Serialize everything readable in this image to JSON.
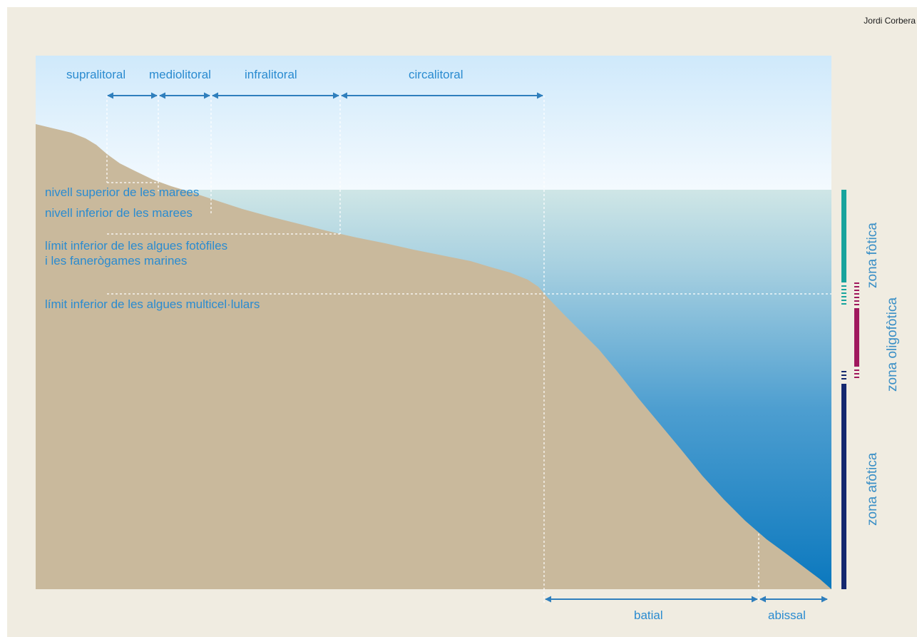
{
  "credit": "Jordi Corbera",
  "top_zones": [
    {
      "id": "supralitoral",
      "label": "supralitoral"
    },
    {
      "id": "mediolitoral",
      "label": "mediolitoral"
    },
    {
      "id": "infralitoral",
      "label": "infralitoral"
    },
    {
      "id": "circalitoral",
      "label": "circalitoral"
    }
  ],
  "bottom_zones": [
    {
      "id": "batial",
      "label": "batial"
    },
    {
      "id": "abissal",
      "label": "abissal"
    }
  ],
  "levels": {
    "upper_tide": "nivell superior de les marees",
    "lower_tide": "nivell inferior de les marees",
    "photophilic_line1": "límit inferior de les algues fotòfiles",
    "photophilic_line2": "i les fanerògames marines",
    "multicellular": "límit inferior de les algues multicel·lulars"
  },
  "light_zones": {
    "photic": "zona fòtica",
    "oligophotic": "zona oligofòtica",
    "aphotic": "zona afòtica"
  },
  "colors": {
    "seabed": "#c9b99c",
    "sky_top": "#cfe9fb",
    "sea_bottom": "#0b78be",
    "arrow": "#2f7fbd",
    "label": "#2a8bd0",
    "photic_bar": "#18a49d",
    "oligophotic_bar": "#a0185d",
    "aphotic_bar": "#15286f"
  }
}
